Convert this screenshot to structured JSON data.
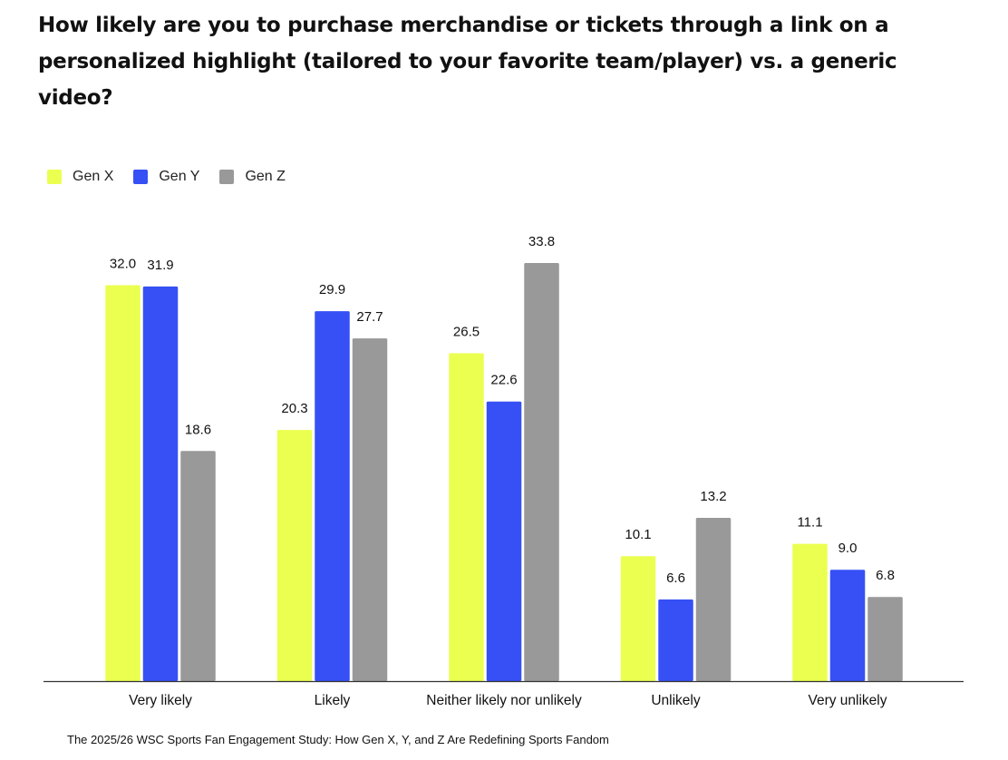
{
  "title": "How likely are you to purchase merchandise or tickets through a link on a personalized highlight (tailored to your favorite team/player) vs. a generic video?",
  "source": "The 2025/26 WSC Sports Fan Engagement Study: How Gen X, Y, and Z Are Redefining Sports Fandom",
  "chart_data": {
    "type": "bar",
    "title": "How likely are you to purchase merchandise or tickets through a link on a personalized highlight (tailored to your favorite team/player) vs. a generic video?",
    "categories": [
      "Very likely",
      "Likely",
      "Neither likely nor unlikely",
      "Unlikely",
      "Very unlikely"
    ],
    "series": [
      {
        "name": "Gen X",
        "color": "#ebff50",
        "values": [
          32.0,
          20.3,
          26.5,
          10.1,
          11.1
        ]
      },
      {
        "name": "Gen Y",
        "color": "#3650f5",
        "values": [
          31.9,
          29.9,
          22.6,
          6.6,
          9.0
        ]
      },
      {
        "name": "Gen Z",
        "color": "#999999",
        "values": [
          18.6,
          27.7,
          33.8,
          13.2,
          6.8
        ]
      }
    ],
    "ylim": [
      0,
      40
    ],
    "grid": false,
    "legend_position": "top-left",
    "data_labels": true
  }
}
